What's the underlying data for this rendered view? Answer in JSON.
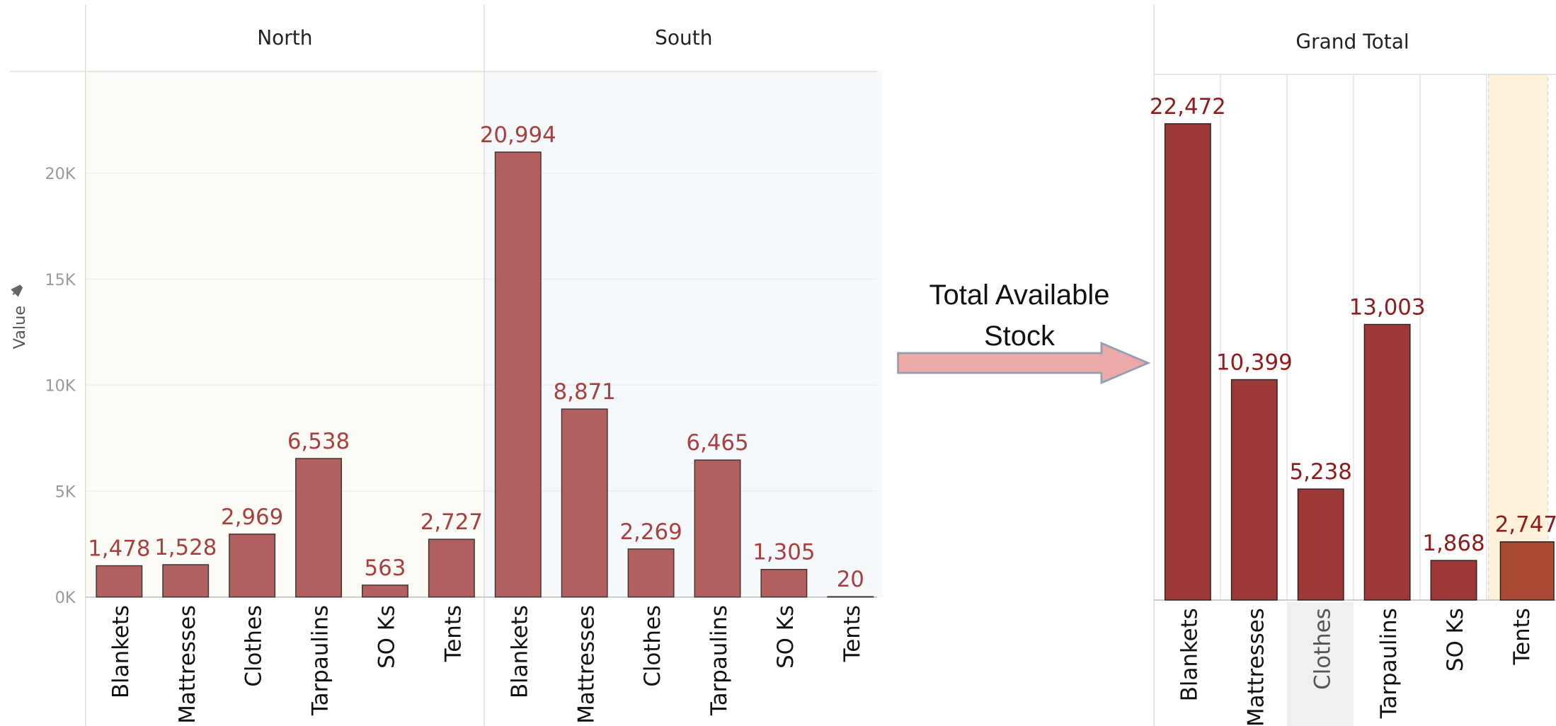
{
  "chart_data": [
    {
      "type": "bar",
      "y_label": "Value",
      "ylim": [
        0,
        24800
      ],
      "yticks": [
        {
          "value": 0,
          "label": "0K"
        },
        {
          "value": 5000,
          "label": "5K"
        },
        {
          "value": 10000,
          "label": "10K"
        },
        {
          "value": 15000,
          "label": "15K"
        },
        {
          "value": 20000,
          "label": "20K"
        }
      ],
      "grid": true,
      "color": "#b2605f",
      "label_color": "#a8403f",
      "panels": [
        {
          "title": "North",
          "background": "#fdfbf6",
          "categories": [
            "Blankets",
            "Mattresses",
            "Clothes",
            "Tarpaulins",
            "SO Ks",
            "Tents"
          ],
          "values": [
            1478,
            1528,
            2969,
            6538,
            563,
            2727
          ],
          "value_labels": [
            "1,478",
            "1,528",
            "2,969",
            "6,538",
            "563",
            "2,727"
          ]
        },
        {
          "title": "South",
          "background": "#f5f9fb",
          "categories": [
            "Blankets",
            "Mattresses",
            "Clothes",
            "Tarpaulins",
            "SO Ks",
            "Tents"
          ],
          "values": [
            20994,
            8871,
            2269,
            6465,
            1305,
            20
          ],
          "value_labels": [
            "20,994",
            "8,871",
            "2,269",
            "6,465",
            "1,305",
            "20"
          ]
        }
      ]
    },
    {
      "type": "bar",
      "title": "Grand Total",
      "ylim": [
        0,
        24800
      ],
      "label_color": "#8e1c1c",
      "categories": [
        "Blankets",
        "Mattresses",
        "Clothes",
        "Tarpaulins",
        "SO Ks",
        "Tents"
      ],
      "values": [
        22472,
        10399,
        5238,
        13003,
        1868,
        2747
      ],
      "value_labels": [
        "22,472",
        "10,399",
        "5,238",
        "13,003",
        "1,868",
        "2,747"
      ],
      "colors": [
        "#9c3838",
        "#9c3838",
        "#9c3838",
        "#9c3838",
        "#9c3838",
        "#a94a32"
      ]
    }
  ],
  "annotation": "Total Available Stock"
}
